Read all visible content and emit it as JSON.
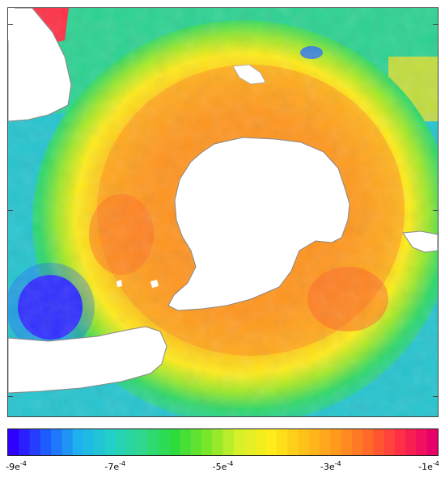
{
  "colorbar": {
    "palette": [
      "#2e00ff",
      "#1f5cff",
      "#1fb0f0",
      "#23d0c8",
      "#2fd88a",
      "#2ddc3c",
      "#7ae62a",
      "#d6f02a",
      "#ffec1a",
      "#ffc21a",
      "#ff9a1e",
      "#ff6a28",
      "#ff2f45",
      "#e8006a"
    ],
    "min": -0.0009,
    "max": -0.0001,
    "ticks": [
      {
        "base": "-9e",
        "exp": "-4",
        "value": -0.0009
      },
      {
        "base": "-7e",
        "exp": "-4",
        "value": -0.0007
      },
      {
        "base": "-5e",
        "exp": "-4",
        "value": -0.0005
      },
      {
        "base": "-3e",
        "exp": "-4",
        "value": -0.0003
      },
      {
        "base": "-1e",
        "exp": "-4",
        "value": -0.0001
      }
    ]
  },
  "map": {
    "projection": "south-polar-stereographic",
    "land_color": "#ffffff",
    "coastline_color": "#888888"
  }
}
